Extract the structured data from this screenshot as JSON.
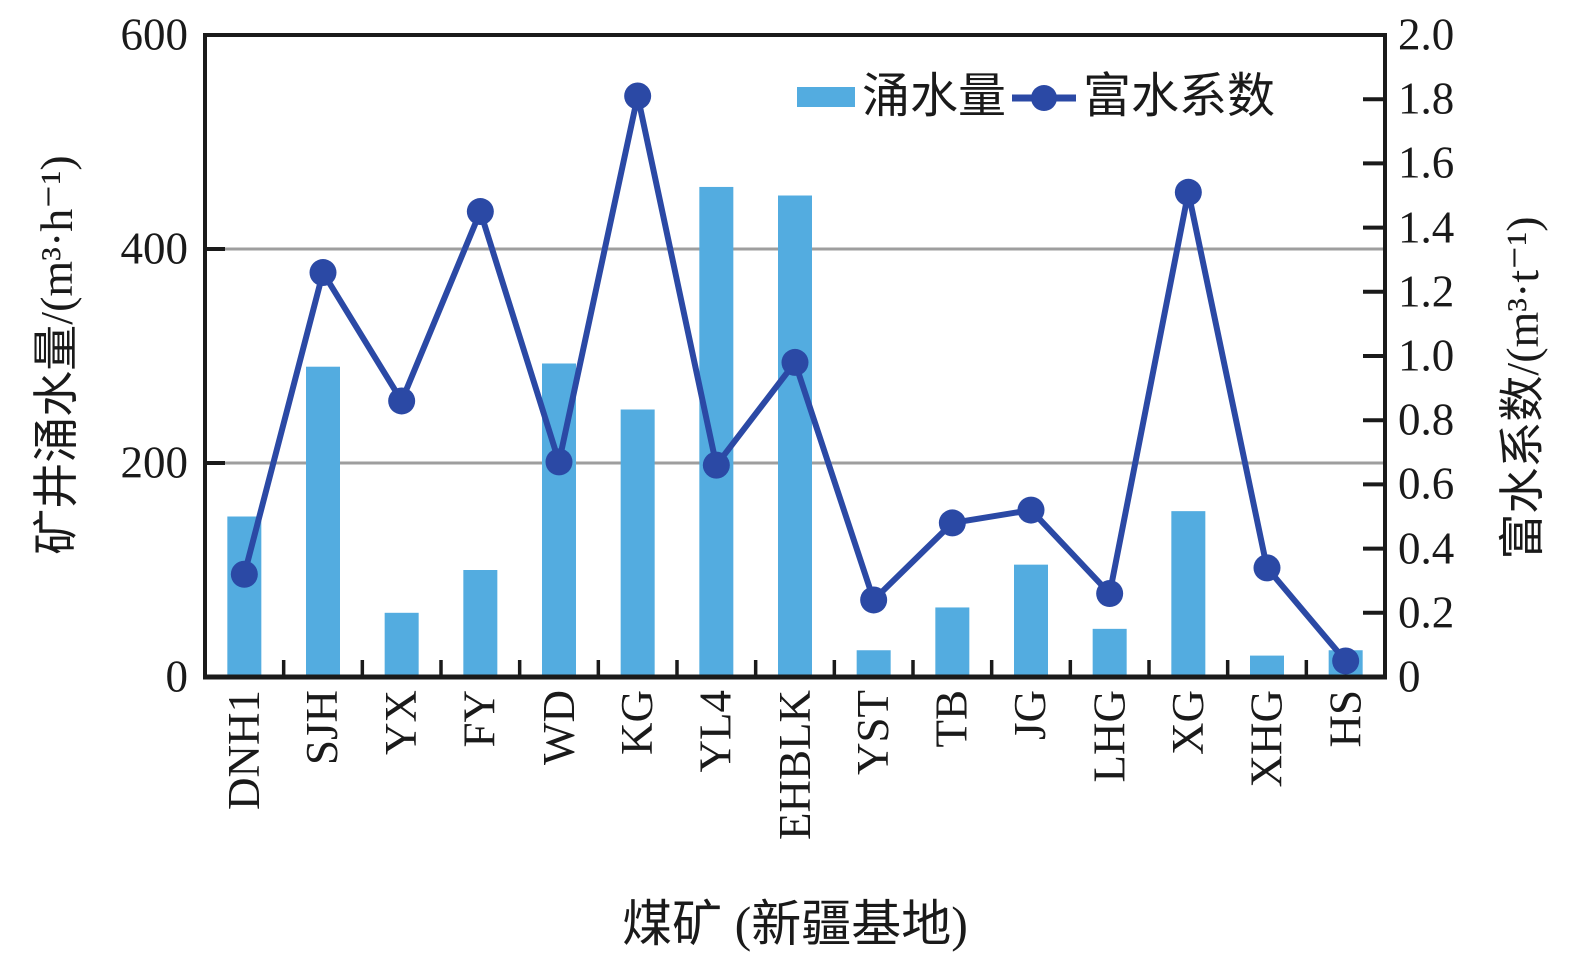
{
  "figure": {
    "background": "#FFFFFF"
  },
  "chart_data": {
    "type": "combo-bar-line",
    "title": "",
    "categories": [
      "DNH1",
      "SJH",
      "YX",
      "FY",
      "WD",
      "KG",
      "YL4",
      "EHBLK",
      "YST",
      "TB",
      "JG",
      "LHG",
      "XG",
      "XHG",
      "HS"
    ],
    "series": [
      {
        "name": "涌水量",
        "type": "bar",
        "axis": "left",
        "color": "#53ACE0",
        "values": [
          150,
          290,
          60,
          100,
          293,
          250,
          458,
          450,
          25,
          65,
          105,
          45,
          155,
          20,
          25
        ]
      },
      {
        "name": "富水系数",
        "type": "line",
        "axis": "right",
        "color": "#2B49A5",
        "marker": "circle",
        "values": [
          0.32,
          1.26,
          0.86,
          1.45,
          0.67,
          1.81,
          0.66,
          0.98,
          0.24,
          0.48,
          0.52,
          0.26,
          1.51,
          0.34,
          0.05
        ]
      }
    ],
    "left_axis": {
      "label": "矿井涌水量/(m³·h⁻¹)",
      "min": 0,
      "max": 600,
      "ticks": [
        "0",
        "200",
        "400",
        "600"
      ],
      "tick_values": [
        0,
        200,
        400,
        600
      ],
      "gridline_values": [
        200,
        400
      ]
    },
    "right_axis": {
      "label": "富水系数/(m³·t⁻¹)",
      "min": 0,
      "max": 2.0,
      "tick_labels": [
        "0",
        "0.2",
        "0.4",
        "0.6",
        "0.8",
        "1.0",
        "1.2",
        "1.4",
        "1.6",
        "1.8",
        "2.0"
      ],
      "tick_values": [
        0,
        0.2,
        0.4,
        0.6,
        0.8,
        1.0,
        1.2,
        1.4,
        1.6,
        1.8,
        2.0
      ]
    },
    "x_axis": {
      "label": "煤矿 (新疆基地)"
    },
    "legend": {
      "position": "inside-top-right",
      "items": [
        "涌水量",
        "富水系数"
      ]
    },
    "grid": "horizontal",
    "axis_color": "#1A1A1A",
    "gridline_color": "#9E9E9E"
  }
}
